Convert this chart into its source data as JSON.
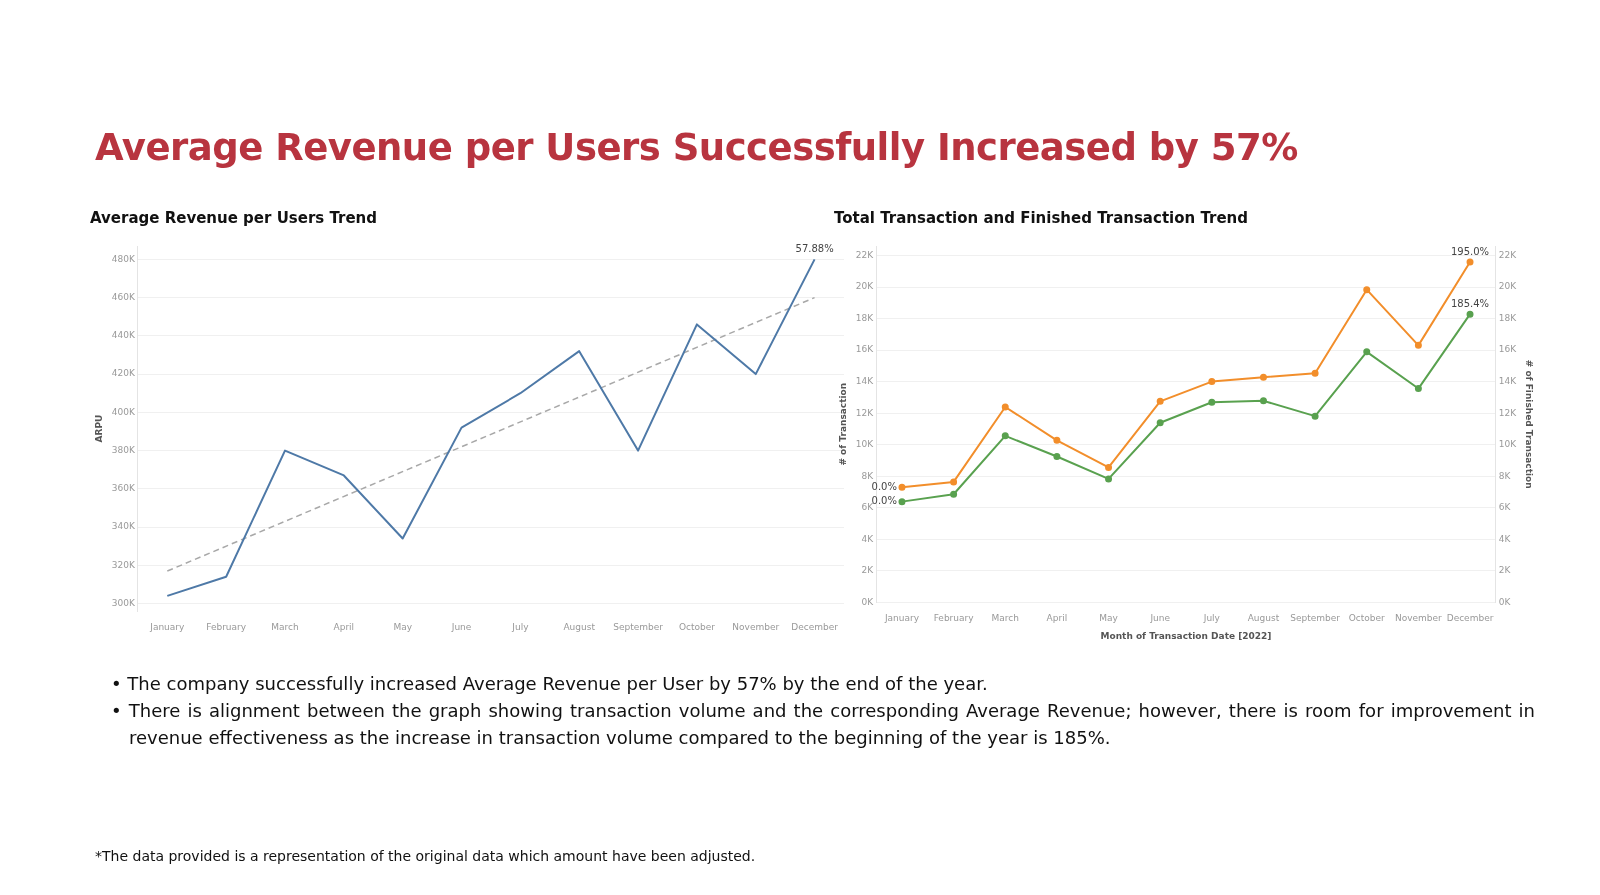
{
  "chart_data": [
    {
      "type": "other",
      "title": "Average Revenue per Users Successfully Increased by 57%"
    },
    {
      "type": "line",
      "title": "Average Revenue per Users Trend",
      "ylabel": "ARPU",
      "categories": [
        "January",
        "February",
        "March",
        "April",
        "May",
        "June",
        "July",
        "August",
        "September",
        "October",
        "November",
        "December"
      ],
      "series": [
        {
          "color": "#4e79a7",
          "values": [
            304000,
            314000,
            380000,
            367000,
            334000,
            392000,
            410000,
            432000,
            380000,
            446000,
            420000,
            480000
          ]
        },
        {
          "type": "line",
          "color": "#a8a8a8",
          "line_style": "dashed",
          "x": [
            "January",
            "December"
          ],
          "values": [
            317000,
            460000
          ]
        }
      ],
      "ylim": [
        296000,
        487000
      ],
      "yticks": [
        {
          "value": 300000,
          "label": "300K"
        },
        {
          "value": 320000,
          "label": "320K"
        },
        {
          "value": 340000,
          "label": "340K"
        },
        {
          "value": 360000,
          "label": "360K"
        },
        {
          "value": 380000,
          "label": "380K"
        },
        {
          "value": 400000,
          "label": "400K"
        },
        {
          "value": 420000,
          "label": "420K"
        },
        {
          "value": 440000,
          "label": "440K"
        },
        {
          "value": 460000,
          "label": "460K"
        },
        {
          "value": 480000,
          "label": "480K"
        }
      ],
      "grid": "y",
      "annotations": [
        {
          "text": "57.88%",
          "x": "December",
          "y": 480000
        }
      ]
    },
    {
      "type": "line",
      "title": "Total Transaction and Finished Transaction Trend",
      "xlabel": "Month of Transaction Date [2022]",
      "ylabel": "# of Transaction",
      "y2label": "# of Finished Transaction",
      "categories": [
        "January",
        "February",
        "March",
        "April",
        "May",
        "June",
        "July",
        "August",
        "September",
        "October",
        "November",
        "December"
      ],
      "series": [
        {
          "color": "#f28e2b",
          "values": [
            7300,
            7640,
            12390,
            10280,
            8560,
            12750,
            14000,
            14280,
            14530,
            19830,
            16300,
            21580
          ]
        },
        {
          "color": "#59a14f",
          "axis": "y2",
          "values": [
            6390,
            6860,
            10560,
            9250,
            7830,
            11390,
            12690,
            12780,
            11810,
            15890,
            13560,
            18280
          ]
        }
      ],
      "marker": "circle",
      "ylim": [
        0,
        22600
      ],
      "yticks": [
        {
          "value": 0,
          "label": "0K"
        },
        {
          "value": 2000,
          "label": "2K"
        },
        {
          "value": 4000,
          "label": "4K"
        },
        {
          "value": 6000,
          "label": "6K"
        },
        {
          "value": 8000,
          "label": "8K"
        },
        {
          "value": 10000,
          "label": "10K"
        },
        {
          "value": 12000,
          "label": "12K"
        },
        {
          "value": 14000,
          "label": "14K"
        },
        {
          "value": 16000,
          "label": "16K"
        },
        {
          "value": 18000,
          "label": "18K"
        },
        {
          "value": 20000,
          "label": "20K"
        },
        {
          "value": 22000,
          "label": "22K"
        }
      ],
      "y2lim": [
        0,
        22600
      ],
      "y2ticks": [
        {
          "value": 0,
          "label": "0K"
        },
        {
          "value": 2000,
          "label": "2K"
        },
        {
          "value": 4000,
          "label": "4K"
        },
        {
          "value": 6000,
          "label": "6K"
        },
        {
          "value": 8000,
          "label": "8K"
        },
        {
          "value": 10000,
          "label": "10K"
        },
        {
          "value": 12000,
          "label": "12K"
        },
        {
          "value": 14000,
          "label": "14K"
        },
        {
          "value": 16000,
          "label": "16K"
        },
        {
          "value": 18000,
          "label": "18K"
        },
        {
          "value": 20000,
          "label": "20K"
        },
        {
          "value": 22000,
          "label": "22K"
        }
      ],
      "grid": "y",
      "annotations": [
        {
          "text": "0.0%",
          "x": "January",
          "y": 7300
        },
        {
          "text": "0.0%",
          "x": "January",
          "y": 6390
        },
        {
          "text": "195.0%",
          "x": "December",
          "y": 21580
        },
        {
          "text": "185.4%",
          "x": "December",
          "y": 18280
        }
      ]
    },
    {
      "type": "other",
      "annotations": [
        "• The company successfully increased Average Revenue per User by 57% by the end of the year.",
        "• There is alignment between the graph showing transaction volume and the corresponding Average Revenue; however, there is room for improvement in revenue effectiveness as the increase in transaction volume compared to the beginning of the year is 185%."
      ]
    },
    {
      "type": "other",
      "annotations": [
        "*The data provided is a representation of the original data which amount have been adjusted."
      ]
    }
  ]
}
